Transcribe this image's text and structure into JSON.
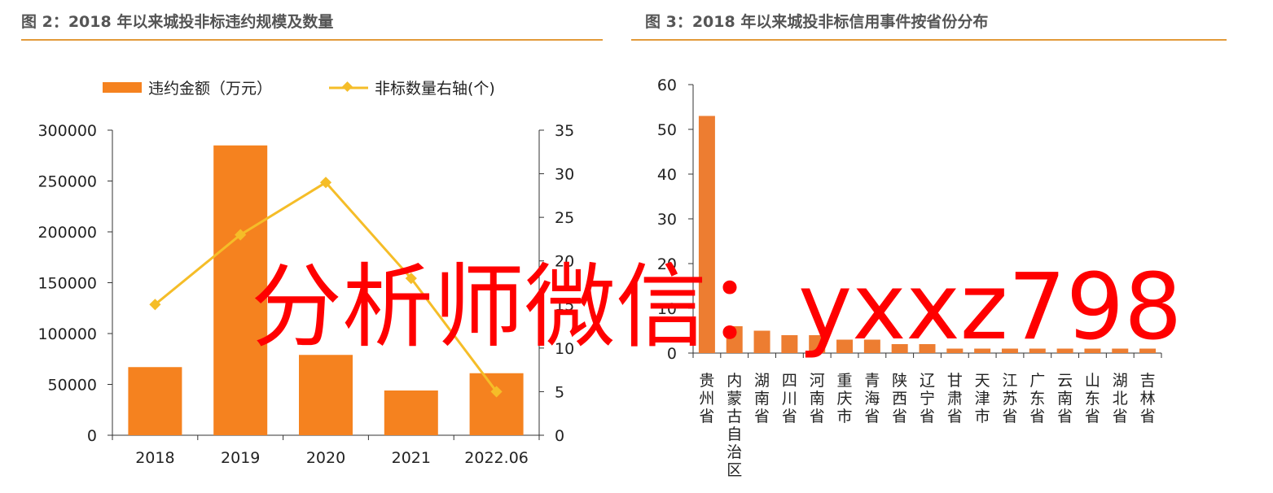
{
  "titles": {
    "fig2": "图 2：2018 年以来城投非标违约规模及数量",
    "fig3": "图 3：2018 年以来城投非标信用事件按省份分布"
  },
  "watermark": "分析师微信：yxxz798",
  "colors": {
    "bar": "#f5821f",
    "bar3": "#ed7d31",
    "line": "#f5bd28",
    "rule": "#e39a3a",
    "watermark": "#ff0000"
  },
  "chart_data": [
    {
      "type": "bar",
      "title": "图 2：2018 年以来城投非标违约规模及数量",
      "categories": [
        "2018",
        "2019",
        "2020",
        "2021",
        "2022.06"
      ],
      "series": [
        {
          "name": "违约金额（万元）",
          "type": "bar",
          "axis": "left",
          "values": [
            67000,
            285000,
            79000,
            44000,
            61000
          ]
        },
        {
          "name": "非标数量右轴(个)",
          "type": "line",
          "axis": "right",
          "values": [
            15,
            23,
            29,
            18,
            5
          ]
        }
      ],
      "ylim_left": [
        0,
        300000
      ],
      "yticks_left": [
        "0",
        "50000",
        "100000",
        "150000",
        "200000",
        "250000",
        "300000"
      ],
      "ylim_right": [
        0,
        35
      ],
      "yticks_right": [
        "0",
        "5",
        "10",
        "15",
        "20",
        "25",
        "30",
        "35"
      ],
      "legend": "top",
      "grid": false
    },
    {
      "type": "bar",
      "title": "图 3：2018 年以来城投非标信用事件按省份分布",
      "categories": [
        "贵州省",
        "内蒙古自治区",
        "湖南省",
        "四川省",
        "河南省",
        "重庆市",
        "青海省",
        "陕西省",
        "辽宁省",
        "甘肃省",
        "天津市",
        "江苏省",
        "广东省",
        "云南省",
        "山东省",
        "湖北省",
        "吉林省"
      ],
      "values": [
        53,
        6,
        5,
        4,
        4,
        3,
        3,
        2,
        2,
        1,
        1,
        1,
        1,
        1,
        1,
        1,
        1
      ],
      "ylim": [
        0,
        60
      ],
      "yticks": [
        "0",
        "10",
        "20",
        "30",
        "40",
        "50",
        "60"
      ],
      "grid": false
    }
  ]
}
